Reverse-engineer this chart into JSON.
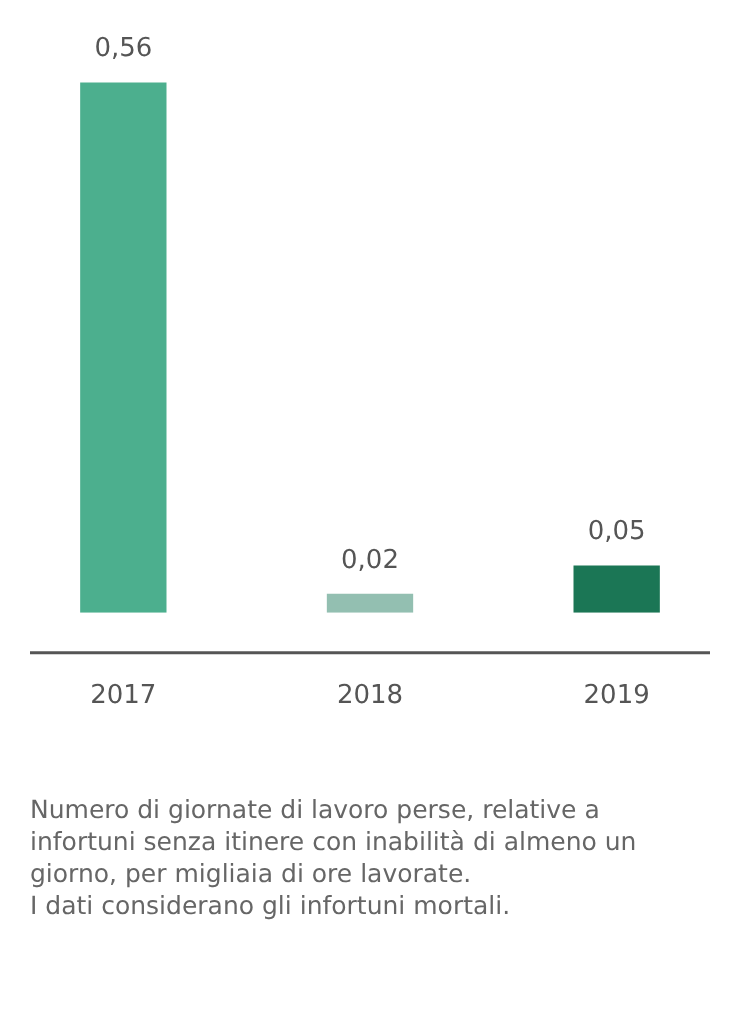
{
  "chart_data": {
    "type": "bar",
    "categories": [
      "2017",
      "2018",
      "2019"
    ],
    "values": [
      0.56,
      0.02,
      0.05
    ],
    "value_labels": [
      "0,56",
      "0,02",
      "0,05"
    ],
    "colors": [
      "#4caf8e",
      "#93bfb1",
      "#1b7655"
    ],
    "grid": false,
    "legend": false,
    "annotations": [
      "Numero di giornate di lavoro perse, relative a infortuni senza itinere con inabilità di almeno un giorno, per migliaia di ore lavorate.",
      "I dati considerano gli infortuni mortali."
    ]
  }
}
